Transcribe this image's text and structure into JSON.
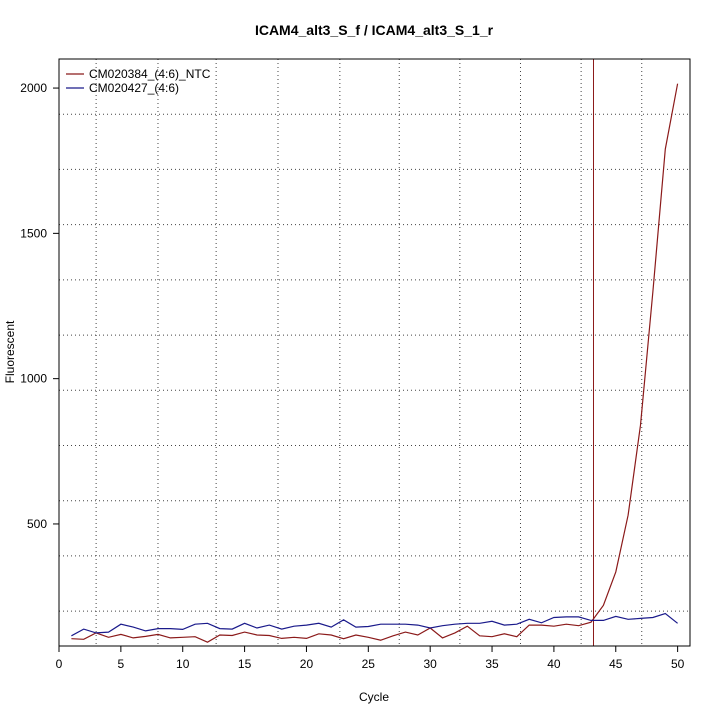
{
  "chart_data": {
    "type": "line",
    "title": "ICAM4_alt3_S_f / ICAM4_alt3_S_1_r",
    "xlabel": "Cycle",
    "ylabel": "Fluorescent",
    "xlim": [
      0,
      51
    ],
    "ylim": [
      80,
      2100
    ],
    "x_ticks": [
      0,
      5,
      10,
      15,
      20,
      25,
      30,
      35,
      40,
      45,
      50
    ],
    "y_ticks": [
      500,
      1000,
      1500,
      2000
    ],
    "x_grid": [
      3,
      8,
      12.7,
      17.7,
      22.7,
      27.5,
      32.4,
      37.3,
      42.2,
      47.1
    ],
    "y_grid": [
      200,
      390,
      580,
      770,
      960,
      1150,
      1340,
      1530,
      1720,
      1910
    ],
    "grid": true,
    "legend_position": "top-left",
    "threshold_cycle": 43.2,
    "threshold_color": "#8b1a1a",
    "x": [
      1,
      2,
      3,
      4,
      5,
      6,
      7,
      8,
      9,
      10,
      11,
      12,
      13,
      14,
      15,
      16,
      17,
      18,
      19,
      20,
      21,
      22,
      23,
      24,
      25,
      26,
      27,
      28,
      29,
      30,
      31,
      32,
      33,
      34,
      35,
      36,
      37,
      38,
      39,
      40,
      41,
      42,
      43,
      44,
      45,
      46,
      47,
      48,
      49,
      50
    ],
    "series": [
      {
        "name": "CM020384_(4:6)_NTC",
        "color": "#8b1a1a",
        "values": [
          105,
          103,
          125,
          110,
          120,
          108,
          113,
          120,
          108,
          110,
          112,
          93,
          118,
          116,
          128,
          118,
          116,
          106,
          110,
          106,
          122,
          118,
          105,
          118,
          110,
          100,
          115,
          128,
          118,
          142,
          108,
          125,
          148,
          115,
          112,
          122,
          112,
          152,
          152,
          148,
          155,
          150,
          162,
          220,
          335,
          530,
          840,
          1300,
          1790,
          2015
        ]
      },
      {
        "name": "CM020427_(4:6)",
        "color": "#1a1a8b",
        "values": [
          115,
          138,
          125,
          128,
          155,
          145,
          132,
          140,
          140,
          137,
          155,
          158,
          140,
          138,
          158,
          142,
          152,
          138,
          148,
          152,
          158,
          145,
          170,
          145,
          147,
          155,
          155,
          155,
          152,
          142,
          150,
          155,
          158,
          158,
          165,
          152,
          155,
          172,
          160,
          178,
          180,
          180,
          168,
          168,
          182,
          172,
          175,
          178,
          192,
          158
        ]
      }
    ]
  }
}
